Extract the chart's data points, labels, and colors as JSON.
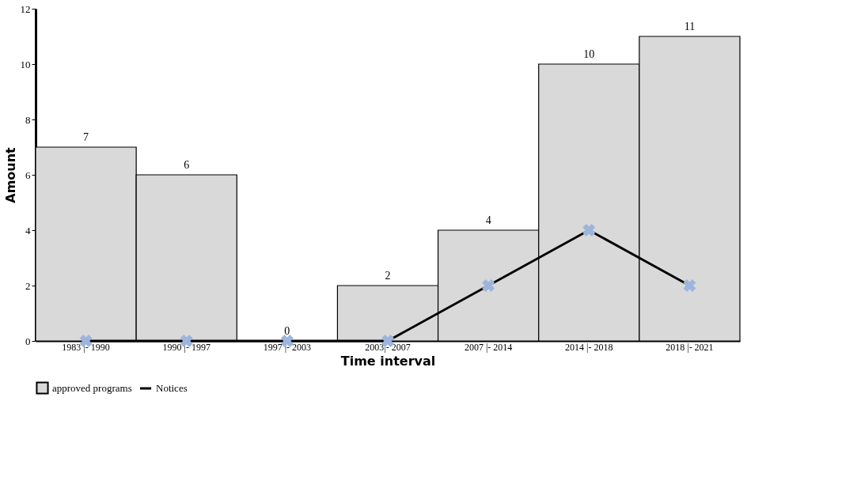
{
  "chart_data": {
    "type": "bar",
    "xlabel": "Time interval",
    "ylabel": "Amount",
    "categories": [
      "1983 |- 1990",
      "1990 |- 1997",
      "1997 |- 2003",
      "2003|- 2007",
      "2007 |- 2014",
      "2014 |- 2018",
      "2018 |- 2021"
    ],
    "series": [
      {
        "name": "approved programs",
        "color": "#d9d9d9",
        "values": [
          7,
          6,
          0,
          2,
          4,
          10,
          11
        ],
        "value_labels": [
          "7",
          "6",
          "0",
          "2",
          "4",
          "10",
          "11"
        ]
      },
      {
        "name": "Notices",
        "type": "line",
        "color": "#000000",
        "marker": "cross",
        "values": [
          0,
          0,
          0,
          0,
          2,
          4,
          2
        ]
      }
    ],
    "ylim": [
      0,
      12
    ],
    "yticks": [
      0,
      2,
      4,
      6,
      8,
      10,
      12
    ],
    "grid": false,
    "legend": "bottom"
  }
}
